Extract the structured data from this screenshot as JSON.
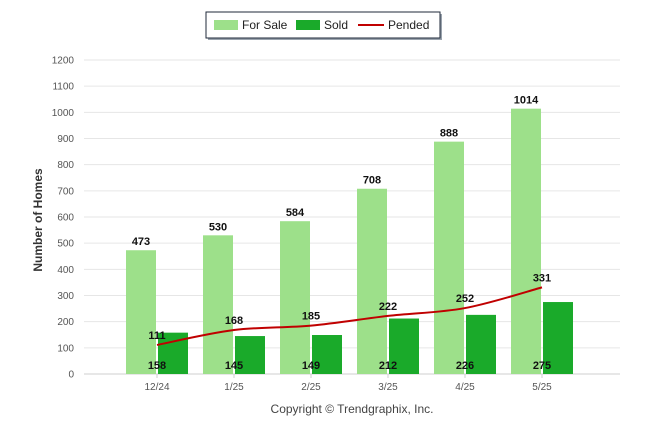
{
  "chart_data": {
    "type": "bar",
    "categories": [
      "12/24",
      "1/25",
      "2/25",
      "3/25",
      "4/25",
      "5/25"
    ],
    "series": [
      {
        "name": "For Sale",
        "kind": "bar",
        "color": "#9de08a",
        "values": [
          473,
          530,
          584,
          708,
          888,
          1014
        ]
      },
      {
        "name": "Sold",
        "kind": "bar",
        "color": "#1aaa2a",
        "values": [
          158,
          145,
          149,
          212,
          226,
          275
        ]
      },
      {
        "name": "Pended",
        "kind": "line",
        "color": "#c00000",
        "values": [
          111,
          168,
          185,
          222,
          252,
          331
        ]
      }
    ],
    "ylabel": "Number of Homes",
    "xlabel": "",
    "ylim": [
      0,
      1200
    ],
    "yticks": [
      0,
      100,
      200,
      300,
      400,
      500,
      600,
      700,
      800,
      900,
      1000,
      1100,
      1200
    ],
    "grid": true,
    "legend_position": "top-center"
  },
  "footer": {
    "copyright": "Copyright © Trendgraphix, Inc."
  }
}
